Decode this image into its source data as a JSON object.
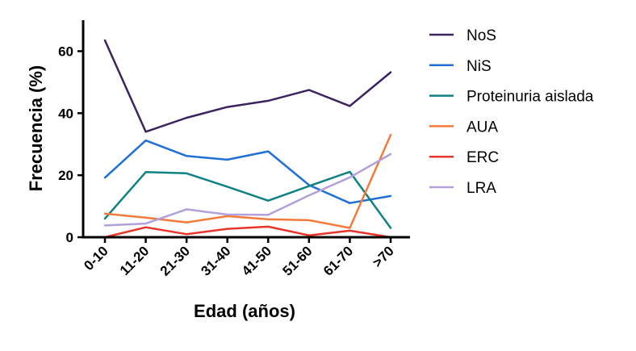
{
  "chart_data": {
    "type": "line",
    "xlabel": "Edad (años)",
    "ylabel": "Frecuencia (%)",
    "ylim": [
      0,
      70
    ],
    "yticks": [
      0,
      20,
      40,
      60
    ],
    "categories": [
      "0-10",
      "11-20",
      "21-30",
      "31-40",
      "41-50",
      "51-60",
      "61-70",
      ">70"
    ],
    "grid": false,
    "legend_position": "right",
    "series": [
      {
        "name": "NoS",
        "color": "#3b2360",
        "values": [
          63.5,
          34,
          38.5,
          42,
          44,
          47.5,
          42.3,
          53.2
        ]
      },
      {
        "name": "NiS",
        "color": "#1f6fd6",
        "values": [
          19.2,
          31.2,
          26.2,
          25,
          27.7,
          16.8,
          11,
          13.3
        ]
      },
      {
        "name": "Proteinuria aislada",
        "color": "#0f8283",
        "values": [
          6,
          21,
          20.6,
          16.3,
          11.8,
          16.5,
          21.1,
          3
        ]
      },
      {
        "name": "AUA",
        "color": "#f47a3a",
        "values": [
          7.6,
          6.3,
          4.8,
          6.8,
          5.8,
          5.5,
          3,
          33
        ]
      },
      {
        "name": "ERC",
        "color": "#e8342b",
        "values": [
          0,
          3.2,
          1,
          2.7,
          3.4,
          0.6,
          2.1,
          0
        ]
      },
      {
        "name": "LRA",
        "color": "#b3a0da",
        "values": [
          3.8,
          4.4,
          9,
          7.3,
          7.2,
          13.5,
          19.3,
          26.8
        ]
      }
    ]
  }
}
